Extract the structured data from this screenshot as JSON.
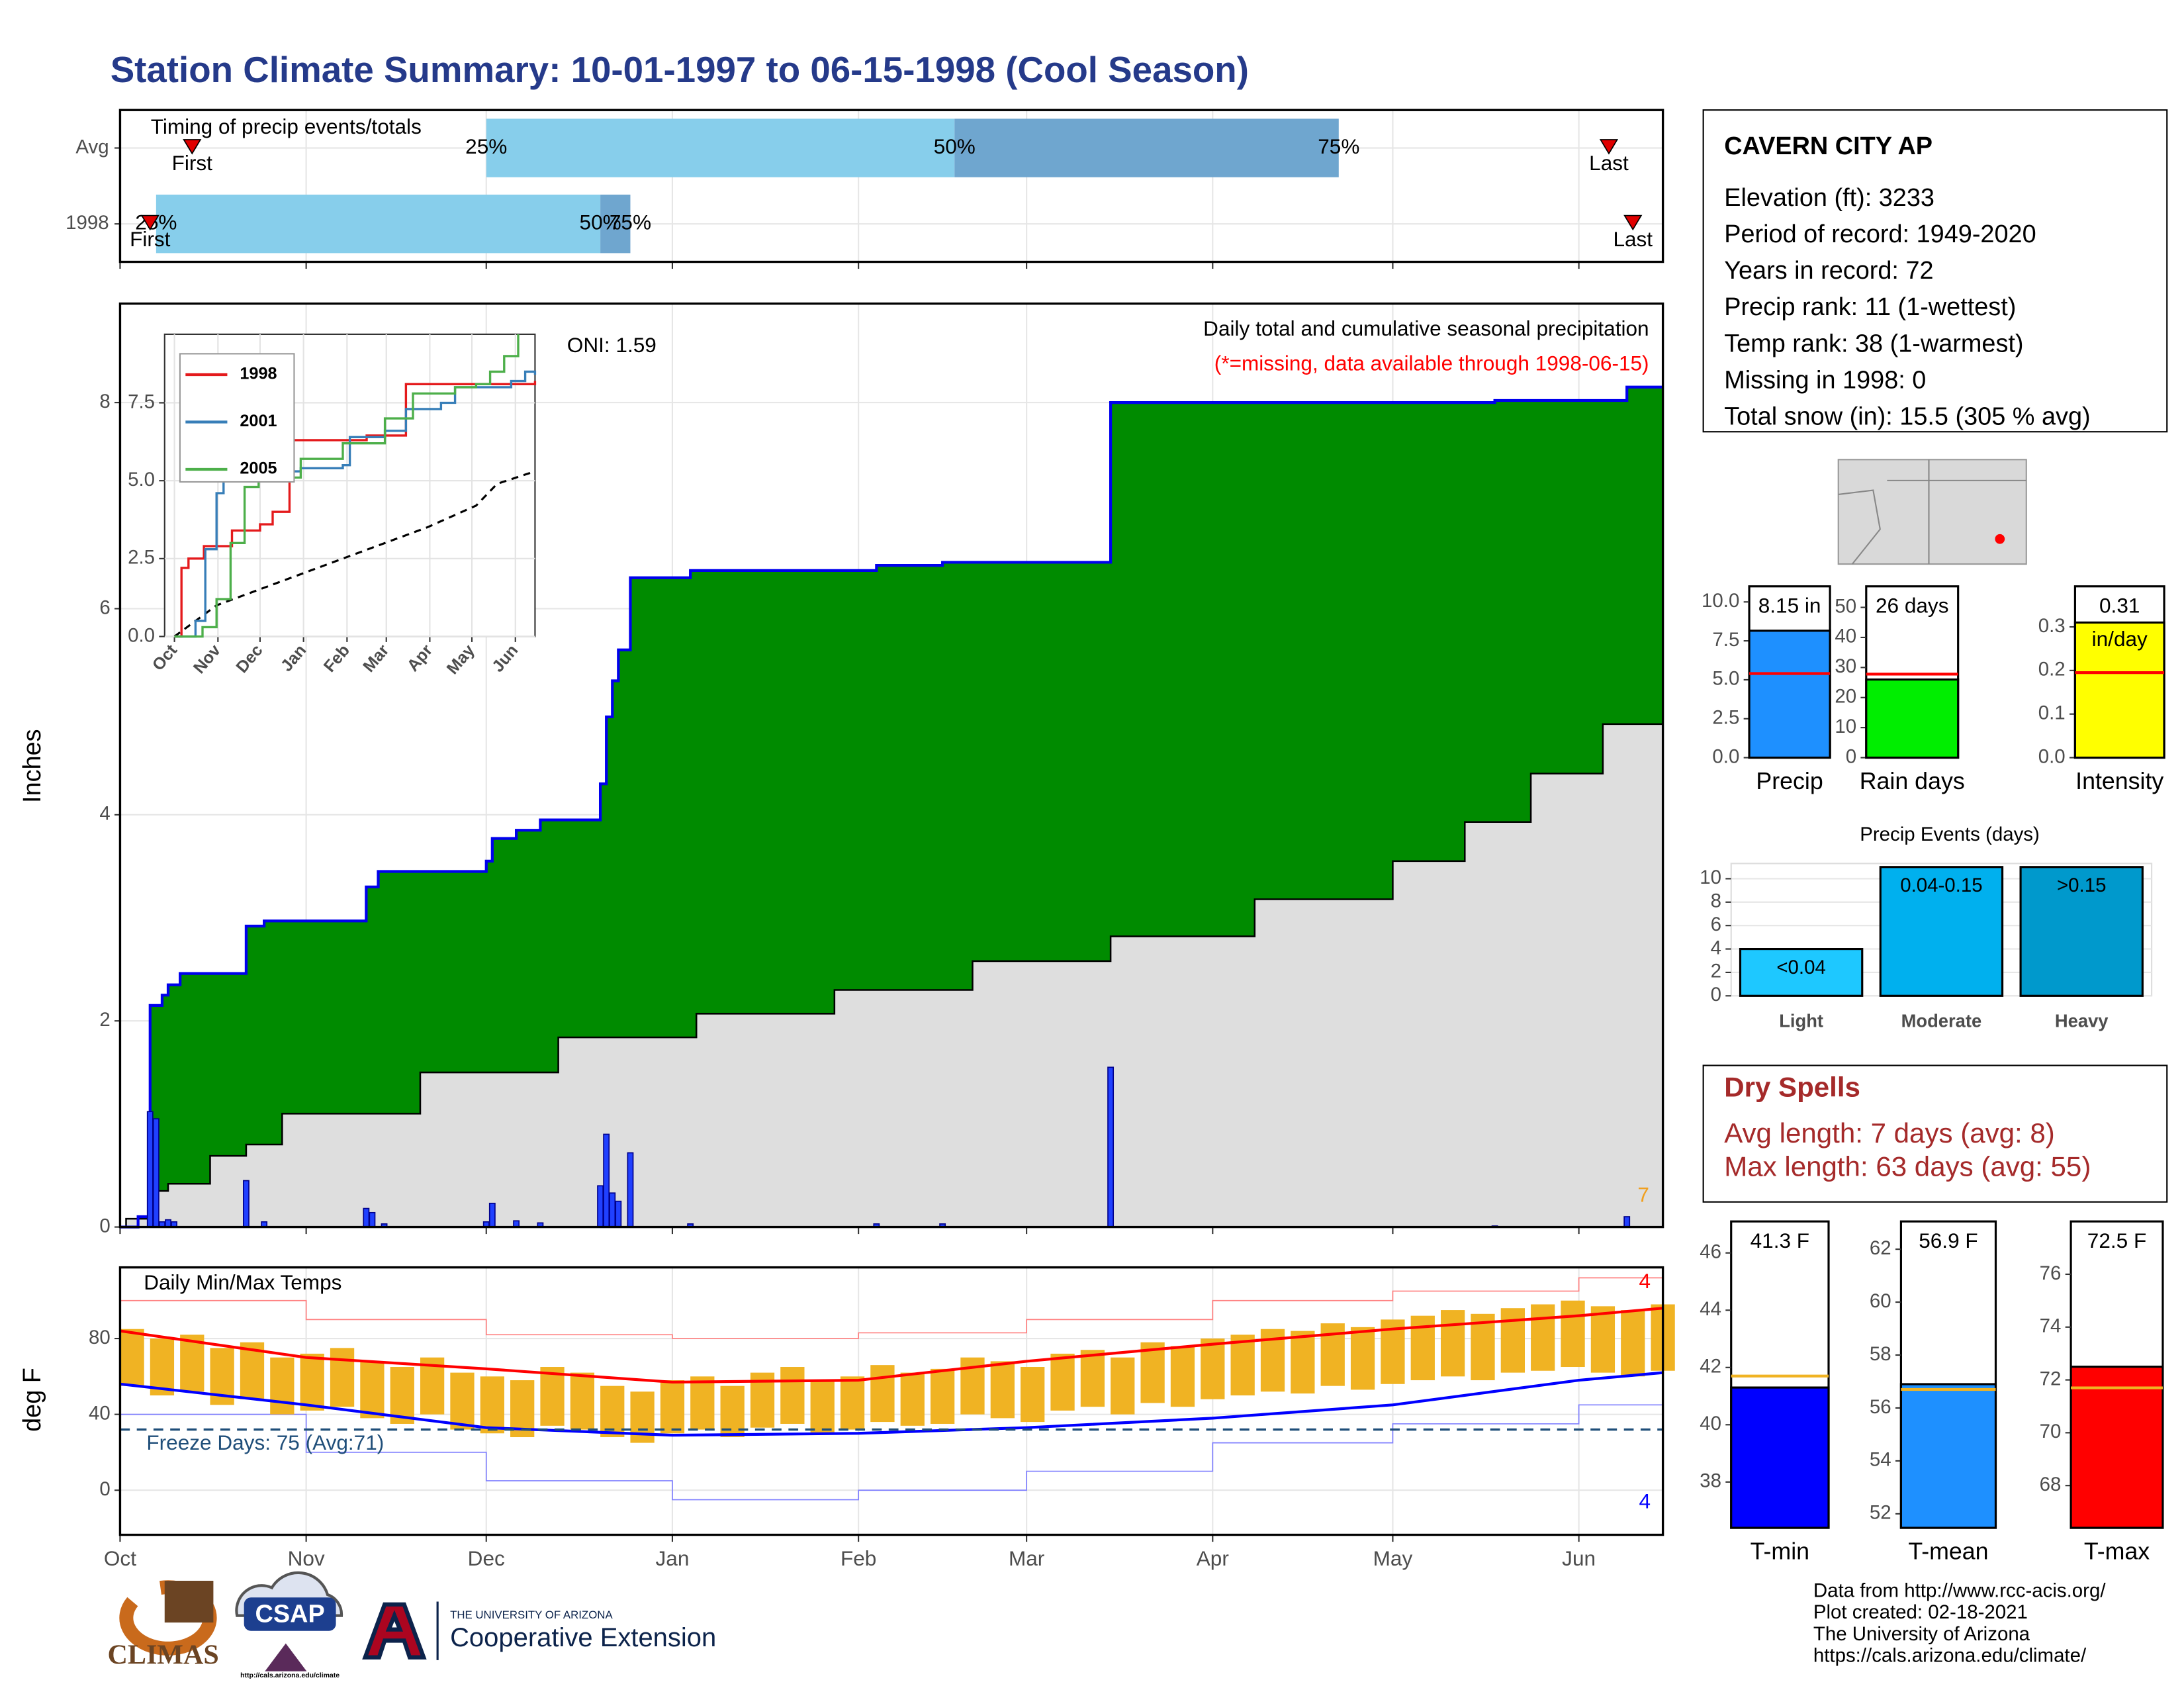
{
  "title": "Station Climate Summary: 10-01-1997 to 06-15-1998 (Cool Season)",
  "chart_data": [
    {
      "type": "timeline",
      "title": "Timing of precip events/totals",
      "xlim": [
        0,
        257
      ],
      "xticks": [
        0,
        31,
        61,
        92,
        123,
        151,
        182,
        212,
        243
      ],
      "grid": true,
      "quartile_labels": [
        "25%",
        "50%",
        "75%"
      ],
      "first_label": "First",
      "last_label": "Last",
      "colors": [
        "#87ceeb",
        "#6fa6cf"
      ],
      "marker_color": "#e00000",
      "rows": [
        {
          "name": "Avg",
          "first": 12,
          "quartiles": [
            61,
            139,
            203
          ],
          "last": 248
        },
        {
          "name": "1998",
          "first": 5,
          "quartiles": [
            6,
            80,
            85
          ],
          "last": 252
        }
      ]
    },
    {
      "type": "area",
      "ylabel": "Inches",
      "subtitle": "Daily total and cumulative seasonal precipitation",
      "note": "(*=missing, data available through 1998-06-15)",
      "oni": "ONI: 1.59",
      "annotation": "7",
      "xlim": [
        0,
        257
      ],
      "xticks": [
        0,
        31,
        61,
        92,
        123,
        151,
        182,
        212,
        243
      ],
      "ylim": [
        0,
        8.96
      ],
      "yticks": [
        0,
        2,
        4,
        6,
        8
      ],
      "grid": true,
      "cumulative": {
        "color": "#008b00",
        "line_color": "#0000ee",
        "x": [
          0,
          3,
          5,
          7,
          8,
          10,
          21,
          24,
          41,
          43,
          61,
          62,
          66,
          70,
          80,
          81,
          82,
          83,
          85,
          95,
          126,
          137,
          165,
          229,
          251
        ],
        "values": [
          0,
          0.1,
          2.15,
          2.25,
          2.35,
          2.46,
          2.92,
          2.97,
          3.3,
          3.45,
          3.55,
          3.77,
          3.85,
          3.95,
          4.3,
          4.95,
          5.3,
          5.6,
          6.3,
          6.37,
          6.42,
          6.45,
          8.0,
          8.02,
          8.15
        ]
      },
      "normal": {
        "color": "#dedede",
        "line_color": "#000000",
        "x": [
          0,
          1,
          5,
          8,
          15,
          21,
          27,
          50,
          73,
          96,
          119,
          142,
          165,
          189,
          212,
          224,
          235,
          247,
          257
        ],
        "values": [
          0,
          0.08,
          0.35,
          0.42,
          0.69,
          0.8,
          1.1,
          1.5,
          1.84,
          2.07,
          2.3,
          2.58,
          2.82,
          3.18,
          3.55,
          3.93,
          4.4,
          4.88,
          5.15
        ]
      },
      "daily": {
        "color": "#2040ff",
        "edge_color": "#00008b",
        "x": [
          5,
          6,
          7,
          8,
          9,
          21,
          24,
          41,
          42,
          44,
          61,
          62,
          66,
          70,
          80,
          81,
          82,
          83,
          85,
          95,
          126,
          137,
          165,
          229,
          251
        ],
        "values": [
          1.12,
          1.05,
          0.05,
          0.07,
          0.05,
          0.45,
          0.05,
          0.18,
          0.14,
          0.03,
          0.05,
          0.23,
          0.06,
          0.04,
          0.4,
          0.9,
          0.33,
          0.25,
          0.72,
          0.03,
          0.03,
          0.03,
          1.55,
          0.01,
          0.1
        ]
      }
    },
    {
      "type": "line",
      "xlim": [
        -7,
        257
      ],
      "ylim": [
        0,
        9.7
      ],
      "grid": true,
      "xticks": [
        {
          "value": 0,
          "label": "Oct"
        },
        {
          "value": 31,
          "label": "Nov"
        },
        {
          "value": 61,
          "label": "Dec"
        },
        {
          "value": 92,
          "label": "Jan"
        },
        {
          "value": 123,
          "label": "Feb"
        },
        {
          "value": 151,
          "label": "Mar"
        },
        {
          "value": 182,
          "label": "Apr"
        },
        {
          "value": 212,
          "label": "May"
        },
        {
          "value": 243,
          "label": "Jun"
        }
      ],
      "yticks": [
        {
          "value": 0,
          "label": "0.0"
        },
        {
          "value": 2.5,
          "label": "2.5"
        },
        {
          "value": 5,
          "label": "5.0"
        },
        {
          "value": 7.5,
          "label": "7.5"
        }
      ],
      "series": [
        {
          "name": "1998",
          "color": "#e41a1c",
          "x": [
            0,
            5,
            10,
            21,
            41,
            61,
            70,
            82,
            85,
            137,
            165,
            257
          ],
          "values": [
            0,
            2.2,
            2.5,
            2.9,
            3.4,
            3.6,
            4.0,
            5.4,
            6.3,
            6.45,
            8.1,
            8.2
          ]
        },
        {
          "name": "2001",
          "color": "#377eb8",
          "x": [
            0,
            15,
            22,
            30,
            35,
            60,
            90,
            120,
            125,
            150,
            165,
            190,
            200,
            240,
            250,
            257
          ],
          "values": [
            0,
            0.5,
            2.8,
            4.6,
            5.1,
            5.3,
            5.4,
            5.5,
            6.4,
            6.6,
            7.3,
            7.5,
            8.0,
            8.2,
            8.5,
            8.4
          ]
        },
        {
          "name": "2005",
          "color": "#4daf4a",
          "x": [
            0,
            20,
            30,
            40,
            50,
            60,
            90,
            120,
            150,
            170,
            200,
            215,
            225,
            235,
            245
          ],
          "values": [
            0,
            0.3,
            1.2,
            3.0,
            4.8,
            5.1,
            5.7,
            6.2,
            7.0,
            7.8,
            8.0,
            8.1,
            8.5,
            9.0,
            9.7
          ]
        }
      ],
      "normal": {
        "color": "#000000",
        "x": [
          0,
          30,
          60,
          120,
          180,
          215,
          230,
          257
        ],
        "values": [
          0,
          1.0,
          1.5,
          2.5,
          3.5,
          4.2,
          4.9,
          5.3
        ]
      }
    },
    {
      "type": "range",
      "title": "Daily Min/Max Temps",
      "ylabel": "deg F",
      "freeze_label": "Freeze Days: 75 (Avg:71)",
      "freeze_line": 32,
      "freeze_color": "#1f4e79",
      "record_high_note": "4",
      "record_low_note": "4",
      "xlim": [
        0,
        257
      ],
      "xticks": [
        {
          "value": 0,
          "label": "Oct"
        },
        {
          "value": 31,
          "label": "Nov"
        },
        {
          "value": 61,
          "label": "Dec"
        },
        {
          "value": 92,
          "label": "Jan"
        },
        {
          "value": 123,
          "label": "Feb"
        },
        {
          "value": 151,
          "label": "Mar"
        },
        {
          "value": 182,
          "label": "Apr"
        },
        {
          "value": 212,
          "label": "May"
        },
        {
          "value": 243,
          "label": "Jun"
        }
      ],
      "ylim": [
        -23.5,
        117.5
      ],
      "yticks": [
        0,
        40,
        80
      ],
      "grid": true,
      "daily": {
        "color": "#f0b323",
        "x": [
          0,
          5,
          10,
          15,
          20,
          25,
          30,
          35,
          40,
          45,
          50,
          55,
          60,
          65,
          70,
          75,
          80,
          85,
          90,
          95,
          100,
          105,
          110,
          115,
          120,
          125,
          130,
          135,
          140,
          145,
          150,
          155,
          160,
          165,
          170,
          175,
          180,
          185,
          190,
          195,
          200,
          205,
          210,
          215,
          220,
          225,
          230,
          235,
          240,
          245,
          250,
          255
        ],
        "max": [
          85,
          80,
          82,
          75,
          78,
          70,
          72,
          75,
          68,
          65,
          70,
          62,
          60,
          58,
          65,
          62,
          55,
          52,
          58,
          60,
          55,
          62,
          65,
          58,
          60,
          66,
          62,
          64,
          70,
          68,
          65,
          72,
          74,
          70,
          78,
          76,
          80,
          82,
          85,
          84,
          88,
          86,
          90,
          92,
          95,
          93,
          96,
          98,
          100,
          97,
          95,
          98
        ],
        "min": [
          55,
          50,
          52,
          45,
          48,
          40,
          42,
          44,
          38,
          35,
          40,
          32,
          30,
          28,
          34,
          32,
          28,
          25,
          30,
          32,
          28,
          33,
          35,
          30,
          32,
          36,
          34,
          35,
          40,
          38,
          36,
          42,
          44,
          40,
          46,
          44,
          48,
          50,
          52,
          51,
          55,
          53,
          56,
          58,
          60,
          58,
          62,
          63,
          65,
          62,
          60,
          63
        ]
      },
      "normal_max": {
        "color": "#ff0000",
        "x": [
          0,
          31,
          61,
          92,
          123,
          151,
          182,
          212,
          243,
          257
        ],
        "values": [
          84,
          70,
          64,
          57,
          58,
          68,
          77,
          85,
          92,
          96
        ]
      },
      "normal_min": {
        "color": "#0000ff",
        "x": [
          0,
          31,
          61,
          92,
          123,
          151,
          182,
          212,
          243,
          257
        ],
        "values": [
          56,
          45,
          33,
          29,
          30,
          33,
          38,
          45,
          58,
          62
        ]
      },
      "record_max": {
        "color": "#ff8080",
        "x": [
          0,
          31,
          61,
          92,
          123,
          151,
          182,
          212,
          243,
          257
        ],
        "values": [
          100,
          90,
          82,
          80,
          83,
          90,
          100,
          105,
          112,
          113
        ]
      },
      "record_min": {
        "color": "#8080ff",
        "x": [
          0,
          31,
          61,
          92,
          123,
          151,
          182,
          212,
          243,
          257
        ],
        "values": [
          40,
          20,
          5,
          -5,
          0,
          10,
          25,
          35,
          45,
          50
        ]
      }
    },
    {
      "type": "bar",
      "categories": [
        "Precip"
      ],
      "values": [
        8.15
      ],
      "value_labels": [
        "8.15 in"
      ],
      "normal": 5.4,
      "color": "#1e90ff",
      "normal_color": "#ff0000",
      "ylim": [
        0,
        11
      ],
      "yticks": [
        {
          "value": 0,
          "label": "0.0"
        },
        {
          "value": 2.5,
          "label": "2.5"
        },
        {
          "value": 5,
          "label": "5.0"
        },
        {
          "value": 7.5,
          "label": "7.5"
        },
        {
          "value": 10,
          "label": "10.0"
        }
      ]
    },
    {
      "type": "bar",
      "categories": [
        "Rain days"
      ],
      "values": [
        26
      ],
      "value_labels": [
        "26 days"
      ],
      "normal": 27.8,
      "color": "#00ee00",
      "normal_color": "#ff0000",
      "ylim": [
        0,
        57
      ],
      "yticks": [
        0,
        10,
        20,
        30,
        40,
        50
      ]
    },
    {
      "type": "bar",
      "categories": [
        "Intensity"
      ],
      "values": [
        0.31
      ],
      "value_labels": [
        "0.31\nin/day"
      ],
      "normal": 0.195,
      "color": "#ffff00",
      "normal_color": "#ff0000",
      "ylim": [
        0,
        0.393
      ],
      "yticks": [
        {
          "value": 0,
          "label": "0.0"
        },
        0.1,
        0.2,
        0.3
      ]
    },
    {
      "type": "bar",
      "title": "Precip Events (days)",
      "categories": [
        "Light",
        "Moderate",
        "Heavy"
      ],
      "values": [
        4,
        11,
        11
      ],
      "bar_labels": [
        "<0.04",
        "0.04-0.15",
        ">0.15"
      ],
      "colors": [
        "#1ec8ff",
        "#00b0ee",
        "#0099cc"
      ],
      "grid": true,
      "ylim": [
        0,
        11.3
      ],
      "yticks": [
        0,
        2,
        4,
        6,
        8,
        10
      ]
    },
    {
      "type": "bar",
      "categories": [
        "T-min"
      ],
      "values": [
        41.3
      ],
      "value_labels": [
        "41.3 F"
      ],
      "normal": 41.7,
      "color": "#0000ff",
      "normal_color": "#f0b323",
      "ylim": [
        36.4,
        47.1
      ],
      "yticks": [
        38,
        40,
        42,
        44,
        46
      ]
    },
    {
      "type": "bar",
      "categories": [
        "T-mean"
      ],
      "values": [
        56.9
      ],
      "value_labels": [
        "56.9 F"
      ],
      "normal": 56.7,
      "color": "#1e90ff",
      "normal_color": "#f0b323",
      "ylim": [
        51.47,
        63.05
      ],
      "yticks": [
        52,
        54,
        56,
        58,
        60,
        62
      ]
    },
    {
      "type": "bar",
      "categories": [
        "T-max"
      ],
      "values": [
        72.5
      ],
      "value_labels": [
        "72.5 F"
      ],
      "normal": 71.7,
      "color": "#ff0000",
      "normal_color": "#f0b323",
      "ylim": [
        66.4,
        78
      ],
      "yticks": [
        68,
        70,
        72,
        74,
        76
      ]
    }
  ],
  "station": {
    "name": "CAVERN CITY AP",
    "lines": [
      "Elevation (ft): 3233",
      "Period of record: 1949-2020",
      "Years in record: 72",
      "Precip rank: 11 (1-wettest)",
      "Temp rank: 38 (1-warmest)",
      "Missing in 1998: 0",
      "Total snow (in): 15.5 (305 % avg)"
    ]
  },
  "dry_spells": {
    "title": "Dry Spells",
    "lines": [
      "Avg length: 7 days (avg: 8)",
      "Max length: 63 days (avg: 55)"
    ]
  },
  "footer": [
    "Data from http://www.rcc-acis.org/",
    "Plot created: 02-18-2021",
    "The University of Arizona",
    "https://cals.arizona.edu/climate/"
  ],
  "logos": {
    "climas": "CLIMAS",
    "csap": "CSAP",
    "csap_url": "http://cals.arizona.edu/climate",
    "university": "THE UNIVERSITY OF ARIZONA",
    "extension": "Cooperative Extension"
  }
}
